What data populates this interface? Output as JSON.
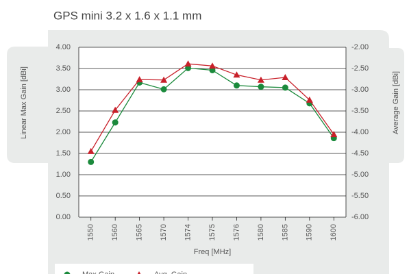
{
  "chart_data": {
    "type": "line",
    "title": "GPS mini 3.2 x 1.6 x 1.1 mm",
    "xlabel": "Freq [MHz]",
    "ylabel": "Linear Max Gain [dBi]",
    "y2label": "Average Gain [dBi]",
    "categories": [
      "1550",
      "1560",
      "1565",
      "1570",
      "1574",
      "1575",
      "1576",
      "1580",
      "1585",
      "1590",
      "1600"
    ],
    "series": [
      {
        "name": "Max Gain",
        "color": "#1b8a3c",
        "marker": "circle",
        "values": [
          1.3,
          2.23,
          3.17,
          3.01,
          3.51,
          3.46,
          3.1,
          3.07,
          3.05,
          2.68,
          1.86
        ]
      },
      {
        "name": "Avg. Gain",
        "color": "#c8202a",
        "marker": "triangle",
        "axis": "y2",
        "values": [
          -4.45,
          -3.48,
          -2.76,
          -2.77,
          -2.39,
          -2.44,
          -2.65,
          -2.77,
          -2.71,
          -3.24,
          -4.05
        ]
      }
    ],
    "ylim": [
      0,
      4
    ],
    "yticks": [
      {
        "value": 0,
        "label": "0.00"
      },
      {
        "value": 0.5,
        "label": "0.50"
      },
      {
        "value": 1,
        "label": "1.00"
      },
      {
        "value": 1.5,
        "label": "1.50"
      },
      {
        "value": 2,
        "label": "2.00"
      },
      {
        "value": 2.5,
        "label": "2.50"
      },
      {
        "value": 3,
        "label": "3.00"
      },
      {
        "value": 3.5,
        "label": "3.50"
      },
      {
        "value": 4,
        "label": "4.00"
      }
    ],
    "y2lim": [
      -6,
      -2
    ],
    "y2ticks": [
      {
        "value": -6,
        "label": "-6.00"
      },
      {
        "value": -5.5,
        "label": "-5.50"
      },
      {
        "value": -5,
        "label": "-5.00"
      },
      {
        "value": -4.5,
        "label": "-4.50"
      },
      {
        "value": -4,
        "label": "-4.00"
      },
      {
        "value": -3.5,
        "label": "-3.50"
      },
      {
        "value": -3,
        "label": "-3.00"
      },
      {
        "value": -2.5,
        "label": "-2.50"
      },
      {
        "value": -2,
        "label": "-2.00"
      }
    ],
    "grid": true,
    "legend": "bottom"
  }
}
